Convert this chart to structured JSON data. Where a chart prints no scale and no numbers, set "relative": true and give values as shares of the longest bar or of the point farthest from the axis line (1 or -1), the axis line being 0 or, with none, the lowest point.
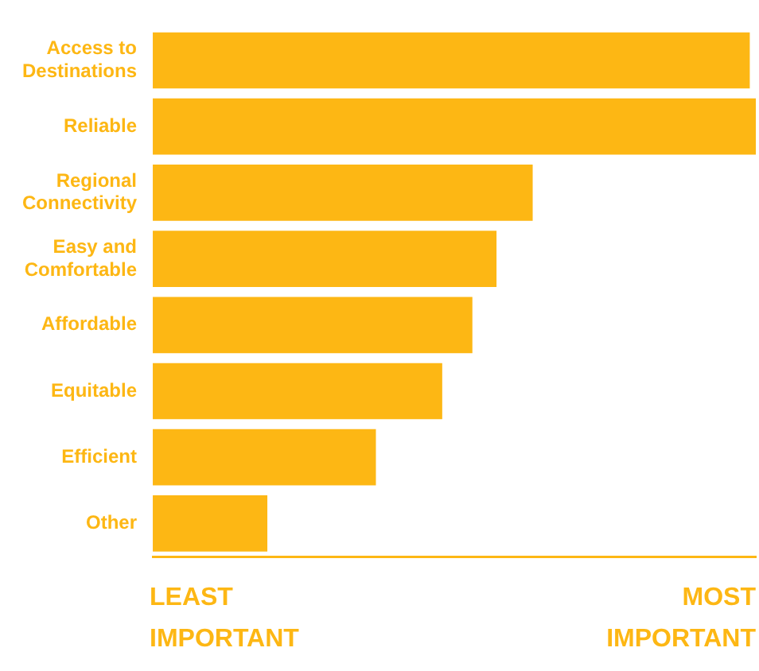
{
  "chart_data": {
    "type": "bar",
    "orientation": "horizontal",
    "relative": true,
    "categories": [
      "Access to Destinations",
      "Reliable",
      "Regional Connectivity",
      "Easy and Comfortable",
      "Affordable",
      "Equitable",
      "Efficient",
      "Other"
    ],
    "values": [
      0.99,
      1,
      0.63,
      0.57,
      0.53,
      0.48,
      0.37,
      0.19
    ],
    "color": "#fdb714",
    "annotations": [
      "LEAST IMPORTANT",
      "MOST IMPORTANT"
    ]
  }
}
